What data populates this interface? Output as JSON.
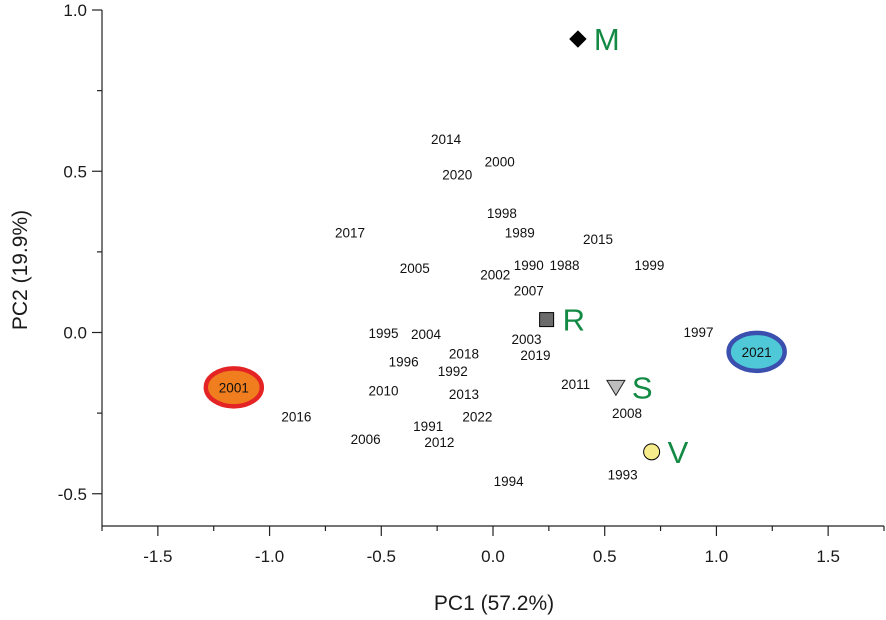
{
  "chart_data": {
    "type": "scatter",
    "title": "",
    "xlabel": "PC1 (57.2%)",
    "ylabel": "PC2 (19.9%)",
    "xlim": [
      -1.75,
      1.75
    ],
    "ylim": [
      -0.6,
      1.0
    ],
    "x_ticks": [
      -1.5,
      -1.0,
      -0.5,
      0.0,
      0.5,
      1.0,
      1.5
    ],
    "x_tick_labels": [
      "-1.5",
      "-1.0",
      "-0.5",
      "0.0",
      "0.5",
      "1.0",
      "1.5"
    ],
    "y_ticks": [
      1.0,
      0.5,
      0.0,
      -0.5
    ],
    "y_tick_labels": [
      "1.0",
      "0.5",
      "0.0",
      "-0.5"
    ],
    "x_minor_ticks": [
      -1.75,
      -1.25,
      -0.75,
      -0.25,
      0.25,
      0.75,
      1.25,
      1.75
    ],
    "y_minor_ticks": [
      0.75,
      0.25,
      -0.25
    ],
    "grid": false,
    "years": [
      {
        "label": "2014",
        "x": -0.21,
        "y": 0.6
      },
      {
        "label": "2000",
        "x": 0.03,
        "y": 0.53
      },
      {
        "label": "2020",
        "x": -0.16,
        "y": 0.49
      },
      {
        "label": "1998",
        "x": 0.04,
        "y": 0.37
      },
      {
        "label": "2017",
        "x": -0.64,
        "y": 0.31
      },
      {
        "label": "1989",
        "x": 0.12,
        "y": 0.31
      },
      {
        "label": "2015",
        "x": 0.47,
        "y": 0.29
      },
      {
        "label": "2005",
        "x": -0.35,
        "y": 0.2
      },
      {
        "label": "1990",
        "x": 0.16,
        "y": 0.21
      },
      {
        "label": "1988",
        "x": 0.32,
        "y": 0.21
      },
      {
        "label": "1999",
        "x": 0.7,
        "y": 0.21
      },
      {
        "label": "2002",
        "x": 0.01,
        "y": 0.18
      },
      {
        "label": "2007",
        "x": 0.16,
        "y": 0.13
      },
      {
        "label": "1995",
        "x": -0.49,
        "y": -0.001
      },
      {
        "label": "2004",
        "x": -0.3,
        "y": -0.004
      },
      {
        "label": "1997",
        "x": 0.92,
        "y": 0.001
      },
      {
        "label": "2003",
        "x": 0.15,
        "y": -0.02
      },
      {
        "label": "2018",
        "x": -0.13,
        "y": -0.065
      },
      {
        "label": "2019",
        "x": 0.19,
        "y": -0.07
      },
      {
        "label": "1996",
        "x": -0.4,
        "y": -0.09
      },
      {
        "label": "1992",
        "x": -0.18,
        "y": -0.12
      },
      {
        "label": "2011",
        "x": 0.37,
        "y": -0.16
      },
      {
        "label": "2010",
        "x": -0.49,
        "y": -0.18
      },
      {
        "label": "2013",
        "x": -0.13,
        "y": -0.19
      },
      {
        "label": "2008",
        "x": 0.6,
        "y": -0.25
      },
      {
        "label": "2016",
        "x": -0.88,
        "y": -0.26
      },
      {
        "label": "2022",
        "x": -0.07,
        "y": -0.26
      },
      {
        "label": "1991",
        "x": -0.29,
        "y": -0.29
      },
      {
        "label": "2006",
        "x": -0.57,
        "y": -0.33
      },
      {
        "label": "2012",
        "x": -0.24,
        "y": -0.34
      },
      {
        "label": "1993",
        "x": 0.58,
        "y": -0.44
      },
      {
        "label": "1994",
        "x": 0.07,
        "y": -0.46
      }
    ],
    "highlighted_years": [
      {
        "label": "2001",
        "x": -1.16,
        "y": -0.17,
        "fill": "#f07e1f",
        "stroke": "#e42424"
      },
      {
        "label": "2021",
        "x": 1.18,
        "y": -0.06,
        "fill": "#4fc9d8",
        "stroke": "#3b4fae"
      }
    ],
    "variables": [
      {
        "label": "M",
        "x": 0.38,
        "y": 0.91,
        "marker": "diamond",
        "fill": "#000000"
      },
      {
        "label": "R",
        "x": 0.24,
        "y": 0.04,
        "marker": "square",
        "fill": "#6b6b6b"
      },
      {
        "label": "S",
        "x": 0.55,
        "y": -0.17,
        "marker": "triangle-down",
        "fill": "#bdbdbd"
      },
      {
        "label": "V",
        "x": 0.71,
        "y": -0.37,
        "marker": "circle",
        "fill": "#f7ec8c"
      }
    ],
    "variable_label_color": "#138a44"
  }
}
